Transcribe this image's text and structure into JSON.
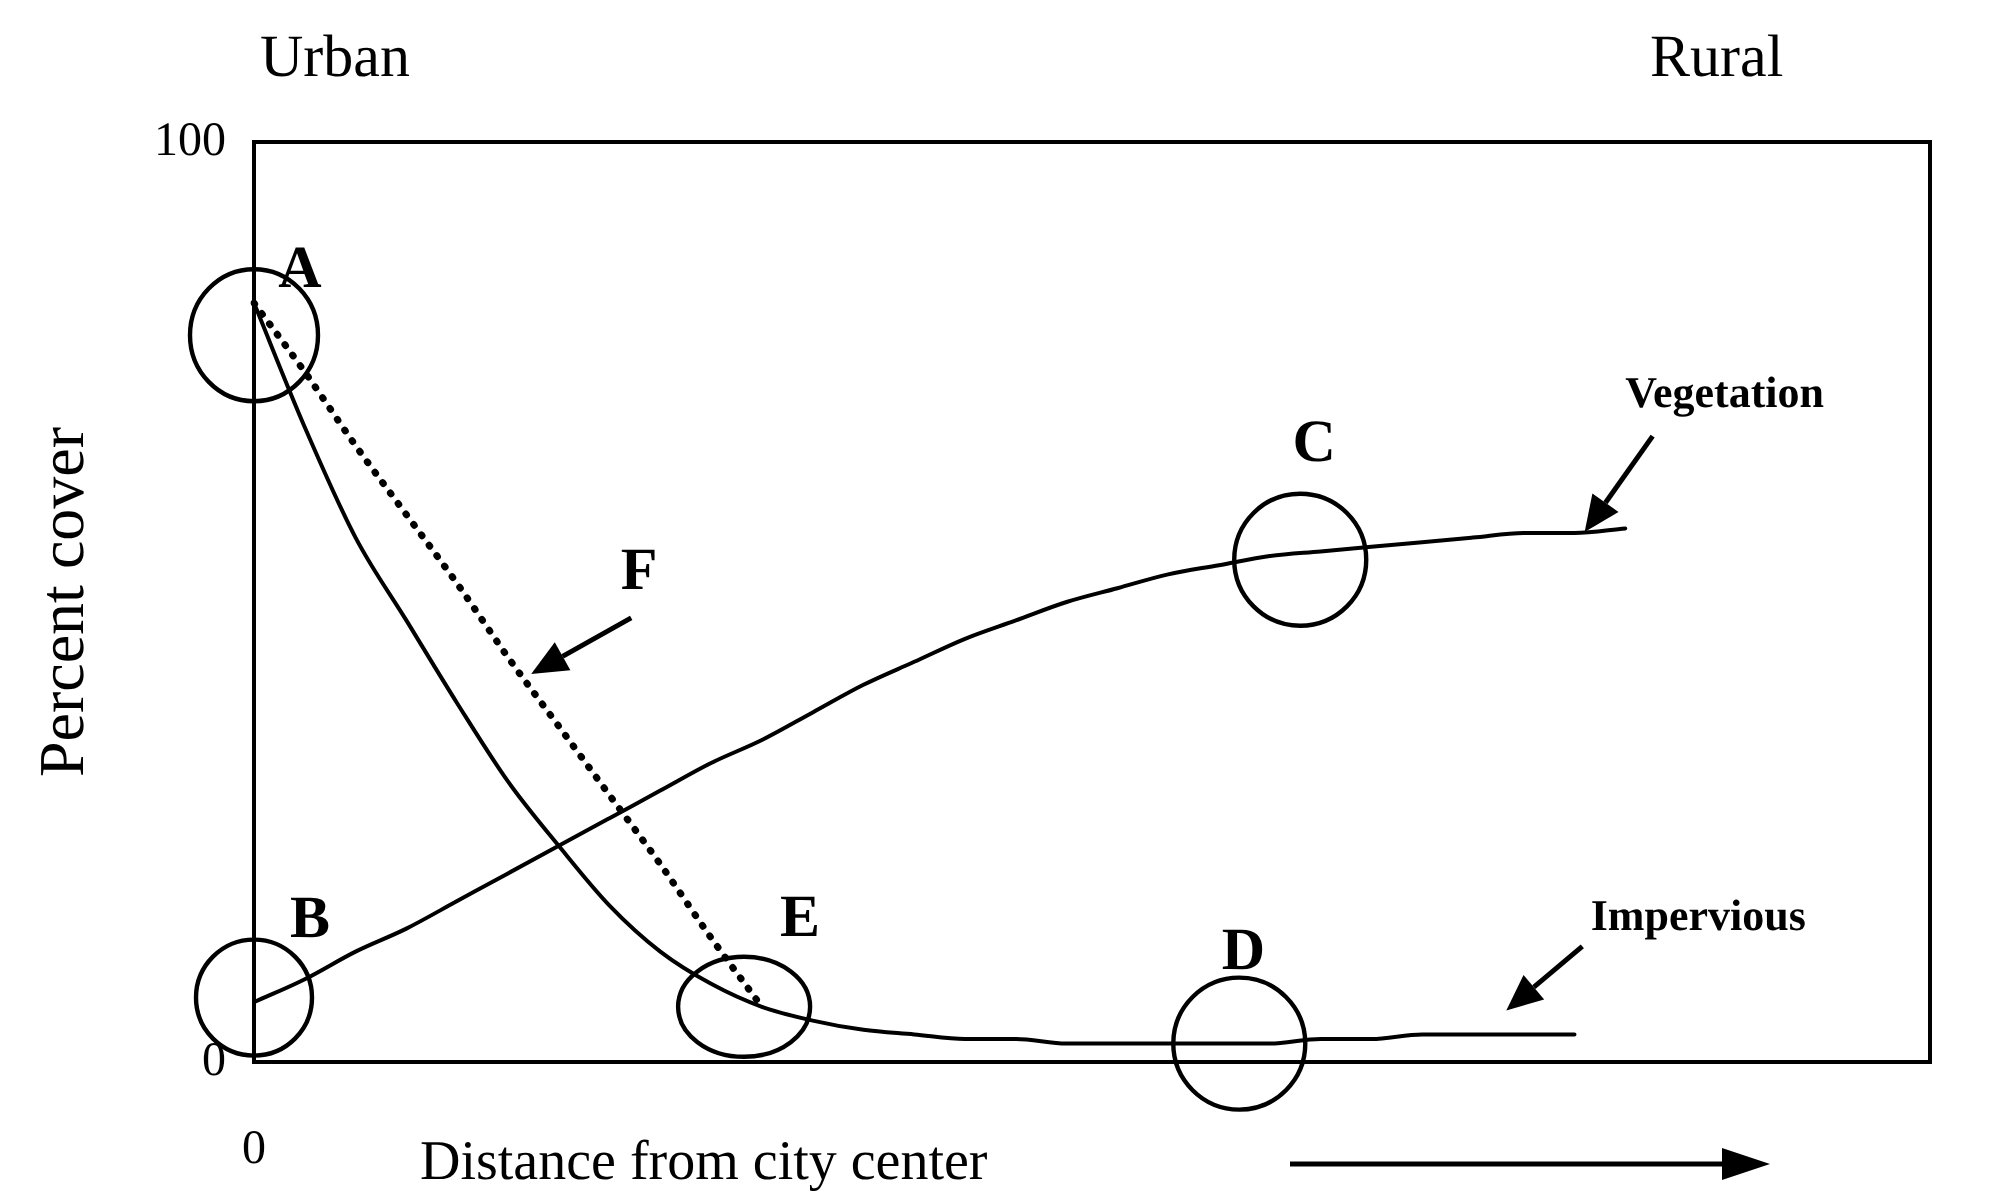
{
  "chart_data": {
    "type": "line",
    "ylabel": "Percent cover",
    "xlabel": "Distance from city center",
    "categories": [
      "0",
      null,
      null,
      null,
      null,
      null,
      null,
      null,
      null,
      null,
      null,
      null,
      null,
      null,
      null,
      null,
      null,
      null,
      null,
      null,
      null,
      null,
      null,
      null,
      null,
      null,
      null,
      null,
      null,
      null,
      null,
      null,
      null,
      null
    ],
    "series": [
      {
        "name": "Vegetation",
        "color": "#000000",
        "values": [
          6.5,
          9,
          12,
          14.5,
          17.5,
          20.5,
          23.5,
          26.5,
          29.5,
          32.5,
          35,
          38,
          41,
          43.5,
          46,
          48,
          50,
          51.5,
          53,
          54,
          55,
          55.5,
          56,
          56.5,
          57,
          57.5,
          57.5,
          58,
          null,
          null,
          null,
          null,
          null,
          null
        ]
      },
      {
        "name": "Impervious",
        "color": "#000000",
        "values": [
          82.5,
          69,
          57,
          48,
          39,
          30.5,
          23.5,
          17,
          12,
          8.5,
          6,
          4.5,
          3.5,
          3,
          2.5,
          2.5,
          2,
          2,
          2,
          2,
          2,
          2.5,
          2.5,
          3,
          3,
          3,
          3,
          null,
          null,
          null,
          null,
          null,
          null,
          null
        ]
      },
      {
        "name": "F",
        "color": "#000000",
        "line_style": "dotted",
        "values": [
          82.5,
          75,
          67,
          59.5,
          52,
          44,
          36.5,
          29,
          21.5,
          13.5,
          6,
          null,
          null,
          null,
          null,
          null,
          null,
          null,
          null,
          null,
          null,
          null,
          null,
          null,
          null,
          null,
          null,
          null,
          null,
          null,
          null,
          null,
          null,
          null
        ]
      }
    ],
    "annotations": [
      "Urban",
      "Rural",
      "A",
      "B",
      "C",
      "D",
      "E"
    ],
    "ylim": [
      0,
      100
    ],
    "yticks": [
      0,
      100
    ],
    "grid": false,
    "legend": false,
    "line_style": "solid"
  }
}
